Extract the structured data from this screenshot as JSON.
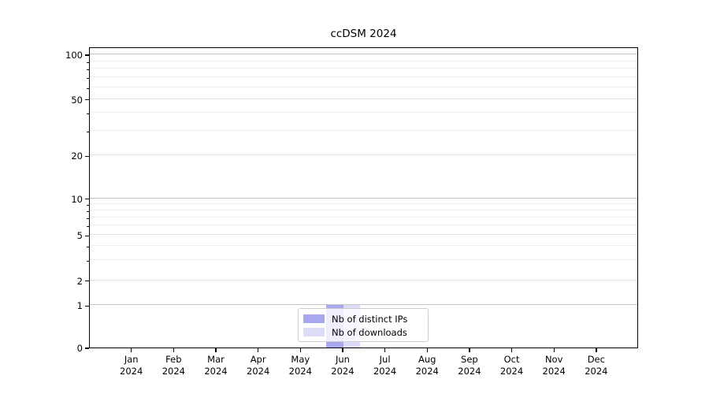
{
  "chart_data": {
    "type": "bar",
    "title": "ccDSM 2024",
    "categories": [
      "Jan",
      "Feb",
      "Mar",
      "Apr",
      "May",
      "Jun",
      "Jul",
      "Aug",
      "Sep",
      "Oct",
      "Nov",
      "Dec"
    ],
    "category_year": "2024",
    "series": [
      {
        "name": "Nb of distinct IPs",
        "color": "#a8a8f0",
        "values": [
          0,
          0,
          0,
          0,
          0,
          1,
          0,
          0,
          0,
          0,
          0,
          0
        ]
      },
      {
        "name": "Nb of downloads",
        "color": "#dcdcf8",
        "values": [
          0,
          0,
          0,
          0,
          0,
          1,
          0,
          0,
          0,
          0,
          0,
          0
        ]
      }
    ],
    "y_ticks": [
      "0",
      "1",
      "2",
      "5",
      "10",
      "20",
      "50",
      "100"
    ],
    "y_scale": "log-like (0 baseline)",
    "ylim": [
      0,
      110
    ],
    "xlabel": "",
    "ylabel": "",
    "grid": "horizontal",
    "legend_position": "lower center"
  }
}
